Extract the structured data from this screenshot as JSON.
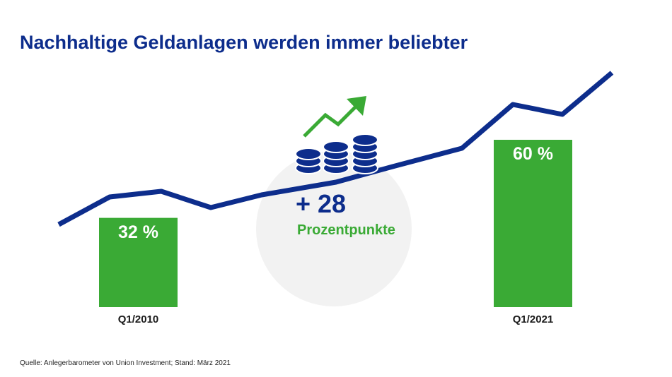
{
  "title": "Nachhaltige Geldanlagen werden immer beliebter",
  "chart_data": {
    "type": "bar",
    "title": "Nachhaltige Geldanlagen werden immer beliebter",
    "categories": [
      "Q1/2010",
      "Q1/2021"
    ],
    "values": [
      32,
      60
    ],
    "value_labels": [
      "32 %",
      "60 %"
    ],
    "unit": "%",
    "ylim": [
      0,
      100
    ],
    "trend_line": "decorative rising line",
    "annotation": {
      "value": "+ 28",
      "label": "Prozentpunkte"
    },
    "colors": {
      "bar": "#3aaa35",
      "line": "#0d2d8c",
      "circle": "#f2f2f2"
    }
  },
  "source": "Quelle: Anlegerbarometer von Union Investment; Stand: März 2021"
}
